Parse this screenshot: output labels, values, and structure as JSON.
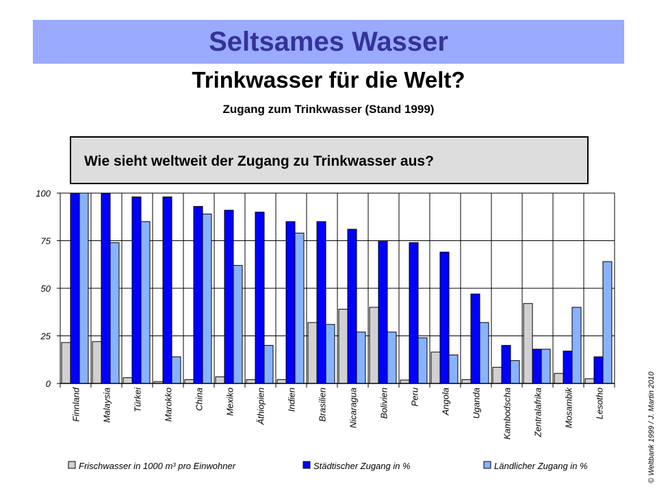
{
  "banner": {
    "title": "Seltsames Wasser"
  },
  "heading": "Trinkwasser für die Welt?",
  "subheading": "Zugang zum Trinkwasser (Stand 1999)",
  "question": "Wie sieht weltweit der Zugang zu Trinkwasser aus?",
  "copyright": "© Weltbank 1999 / J. Martin 2010",
  "colors": {
    "fresh": "#d8d8d8",
    "urban": "#0000ff",
    "rural": "#6699ff"
  },
  "chart_data": {
    "type": "bar",
    "ylim": [
      0,
      100
    ],
    "yticks": [
      "0",
      "25",
      "50",
      "75",
      "100"
    ],
    "grid": true,
    "legend_position": "bottom",
    "categories": [
      "Finnland",
      "Malaysia",
      "Türkei",
      "Marokko",
      "China",
      "Mexiko",
      "Äthiopien",
      "Indien",
      "Brasilien",
      "Nicaragua",
      "Bolivien",
      "Peru",
      "Angola",
      "Uganda",
      "Kambodscha",
      "Zentralafrika",
      "Mosambik",
      "Lesotho"
    ],
    "series": [
      {
        "name": "Frischwasser in 1000 m³ pro Einwohner",
        "values": [
          21.5,
          22,
          3,
          1,
          2,
          3.5,
          2,
          2,
          32,
          39,
          40,
          1.8,
          16.5,
          2,
          8.5,
          42,
          5.3,
          2.5
        ]
      },
      {
        "name": "Städtischer Zugang in %",
        "values": [
          100,
          100,
          98,
          98,
          93,
          91,
          90,
          85,
          85,
          81,
          75,
          74,
          69,
          47,
          20,
          18,
          17,
          14
        ]
      },
      {
        "name": "Ländlicher Zugang in %",
        "values": [
          100,
          74,
          85,
          14,
          89,
          62,
          20,
          79,
          31,
          27,
          27,
          24,
          15,
          32,
          12,
          18,
          40,
          64
        ]
      }
    ]
  }
}
